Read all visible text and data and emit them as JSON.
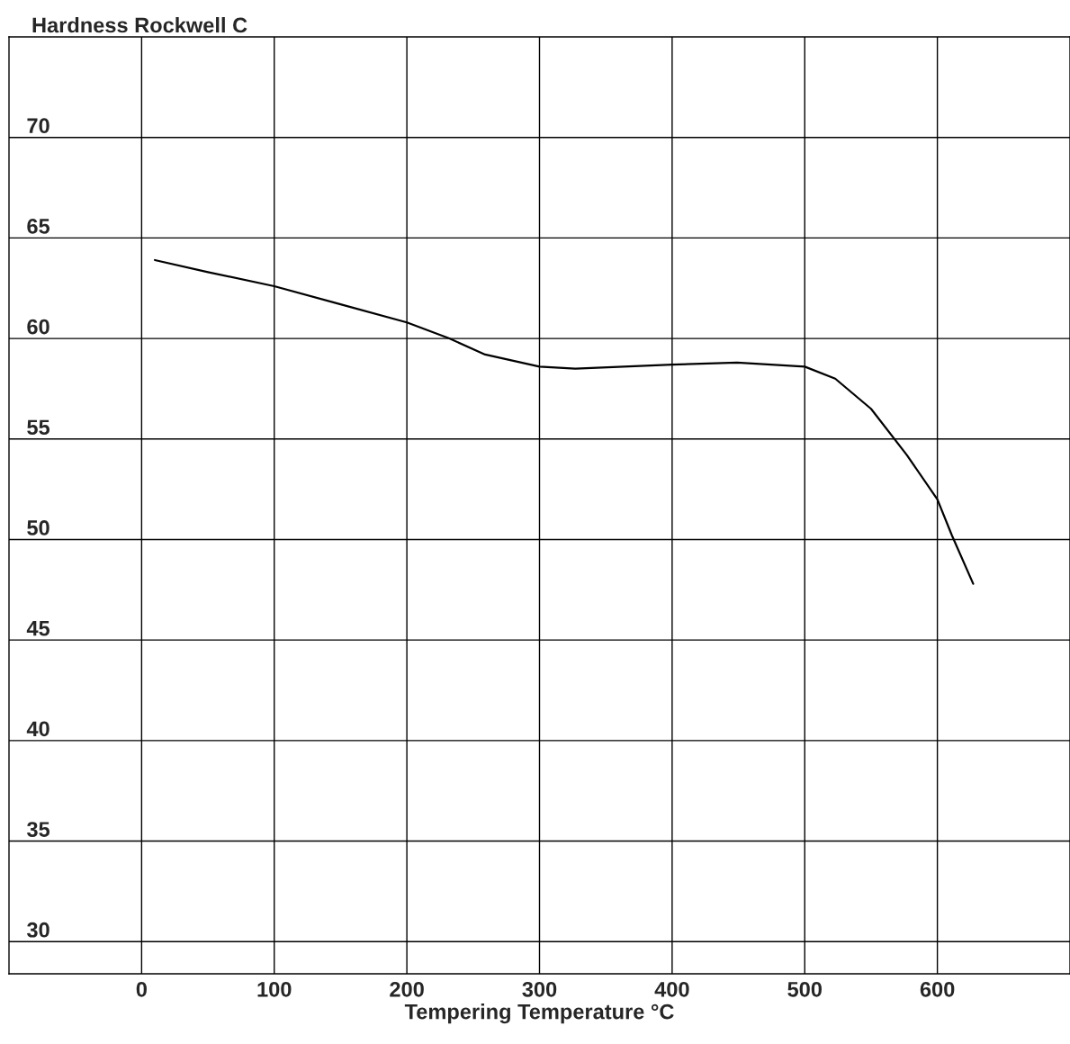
{
  "chart_data": {
    "type": "line",
    "xlabel": "Tempering Temperature °C",
    "ylabel": "Hardness Rockwell C",
    "x": [
      10,
      50,
      100,
      150,
      200,
      232,
      259,
      300,
      327,
      400,
      449,
      500,
      523,
      550,
      577,
      600,
      611,
      627
    ],
    "series": [
      {
        "color": "#000000",
        "values": [
          63.9,
          63.3,
          62.6,
          61.7,
          60.8,
          60.0,
          59.2,
          58.6,
          58.5,
          58.7,
          58.8,
          58.6,
          58.0,
          56.5,
          54.2,
          52.0,
          50.2,
          47.8
        ]
      }
    ],
    "xlim": [
      -100,
      700
    ],
    "ylim": [
      28.4,
      75
    ],
    "xticks": [
      0,
      100,
      200,
      300,
      400,
      500,
      600
    ],
    "yticks": [
      30,
      35,
      40,
      45,
      50,
      55,
      60,
      65,
      70
    ],
    "grid": true,
    "legend": false,
    "marker": "none",
    "line_style": "solid"
  }
}
